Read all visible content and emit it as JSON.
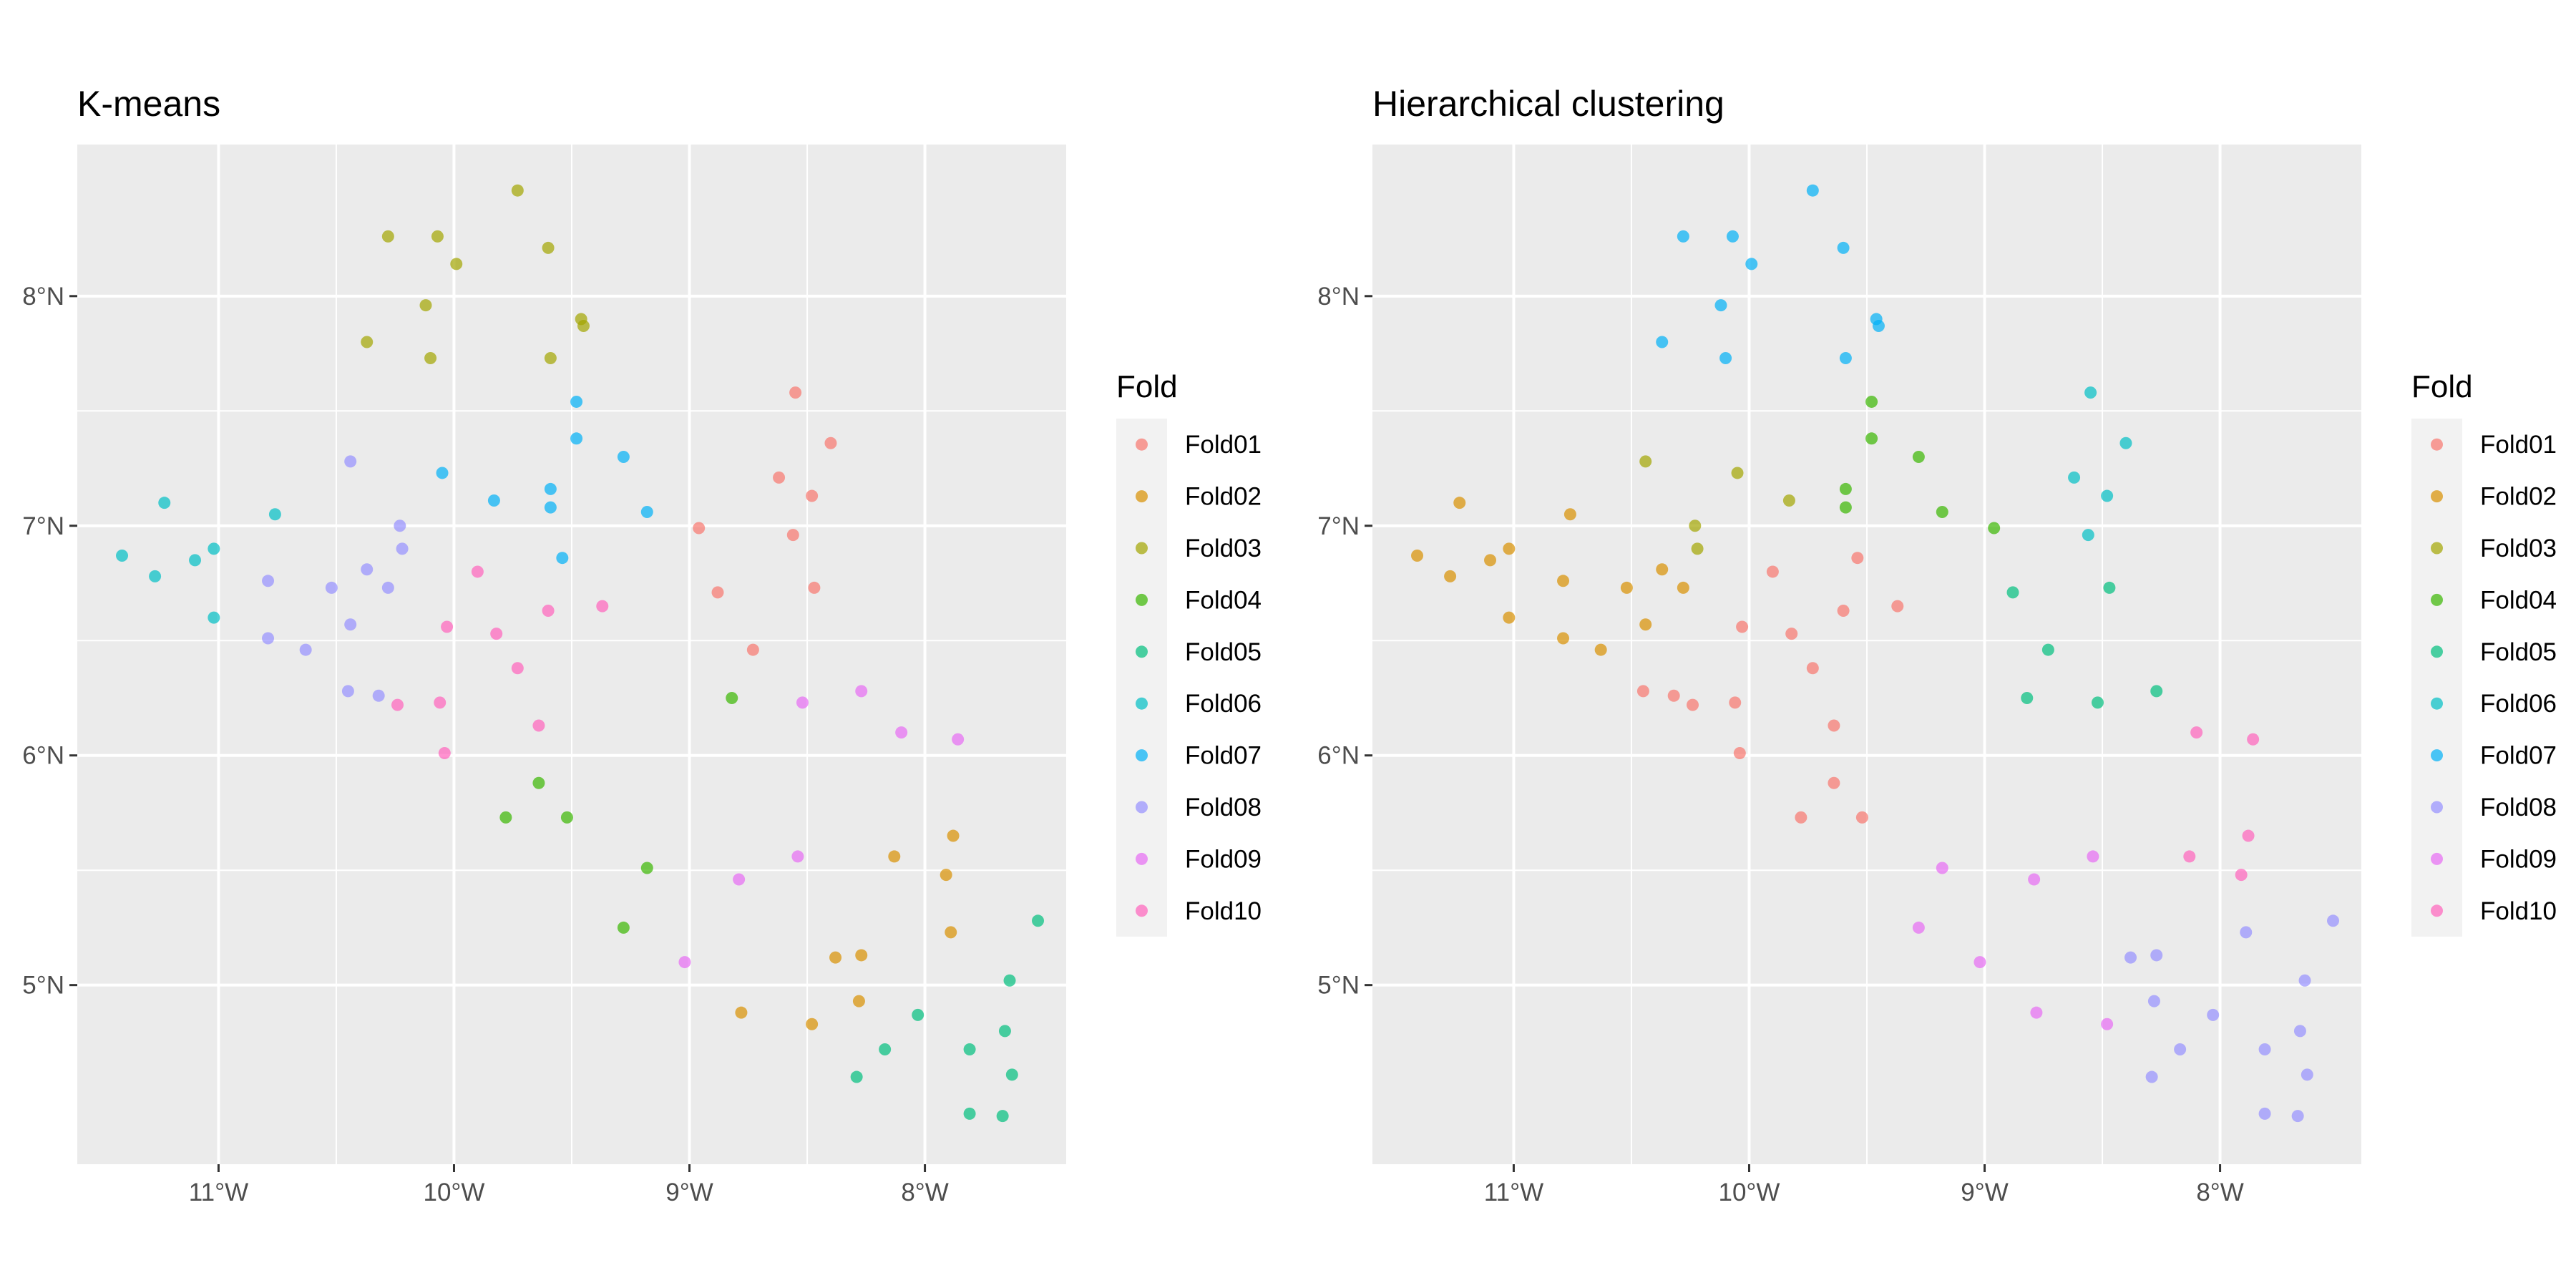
{
  "colors": {
    "panel_bg": "#ebebeb",
    "grid": "#ffffff",
    "legend_key_bg": "#f2f2f2",
    "tick_text": "#4d4d4d"
  },
  "legend": {
    "title": "Fold",
    "items": [
      {
        "label": "Fold01",
        "color": "#F8766D"
      },
      {
        "label": "Fold02",
        "color": "#D89000"
      },
      {
        "label": "Fold03",
        "color": "#A3A500"
      },
      {
        "label": "Fold04",
        "color": "#39B600"
      },
      {
        "label": "Fold05",
        "color": "#00BF7D"
      },
      {
        "label": "Fold06",
        "color": "#00BFC4"
      },
      {
        "label": "Fold07",
        "color": "#00B0F6"
      },
      {
        "label": "Fold08",
        "color": "#9590FF"
      },
      {
        "label": "Fold09",
        "color": "#E76BF3"
      },
      {
        "label": "Fold10",
        "color": "#FF62BC"
      }
    ]
  },
  "chart_data": [
    {
      "type": "scatter",
      "title": "K-means",
      "xlabel": "",
      "ylabel": "",
      "xlim": [
        -11.6,
        -7.4
      ],
      "ylim": [
        4.22,
        8.66
      ],
      "x_ticks": [
        {
          "value": -11,
          "label": "11°W"
        },
        {
          "value": -10,
          "label": "10°W"
        },
        {
          "value": -9,
          "label": "9°W"
        },
        {
          "value": -8,
          "label": "8°W"
        }
      ],
      "y_ticks": [
        {
          "value": 5,
          "label": "5°N"
        },
        {
          "value": 6,
          "label": "6°N"
        },
        {
          "value": 7,
          "label": "7°N"
        },
        {
          "value": 8,
          "label": "8°N"
        }
      ],
      "grid": true,
      "point_alpha": 0.7,
      "series": [
        {
          "name": "Fold01",
          "points": [
            [
              -8.55,
              7.58
            ],
            [
              -8.4,
              7.36
            ],
            [
              -8.62,
              7.21
            ],
            [
              -8.48,
              7.13
            ],
            [
              -8.96,
              6.99
            ],
            [
              -8.56,
              6.96
            ],
            [
              -8.88,
              6.71
            ],
            [
              -8.47,
              6.73
            ],
            [
              -8.73,
              6.46
            ]
          ]
        },
        {
          "name": "Fold02",
          "points": [
            [
              -8.13,
              5.56
            ],
            [
              -7.88,
              5.65
            ],
            [
              -7.91,
              5.48
            ],
            [
              -7.89,
              5.23
            ],
            [
              -8.27,
              5.13
            ],
            [
              -8.38,
              5.12
            ],
            [
              -8.78,
              4.88
            ],
            [
              -8.28,
              4.93
            ],
            [
              -8.48,
              4.83
            ]
          ]
        },
        {
          "name": "Fold03",
          "points": [
            [
              -10.28,
              8.26
            ],
            [
              -10.07,
              8.26
            ],
            [
              -9.73,
              8.46
            ],
            [
              -9.6,
              8.21
            ],
            [
              -9.99,
              8.14
            ],
            [
              -10.12,
              7.96
            ],
            [
              -9.46,
              7.9
            ],
            [
              -9.45,
              7.87
            ],
            [
              -10.37,
              7.8
            ],
            [
              -10.1,
              7.73
            ],
            [
              -9.59,
              7.73
            ]
          ]
        },
        {
          "name": "Fold04",
          "points": [
            [
              -8.82,
              6.25
            ],
            [
              -9.64,
              5.88
            ],
            [
              -9.52,
              5.73
            ],
            [
              -9.78,
              5.73
            ],
            [
              -9.18,
              5.51
            ],
            [
              -9.28,
              5.25
            ]
          ]
        },
        {
          "name": "Fold05",
          "points": [
            [
              -7.52,
              5.28
            ],
            [
              -7.64,
              5.02
            ],
            [
              -7.66,
              4.8
            ],
            [
              -8.03,
              4.87
            ],
            [
              -8.17,
              4.72
            ],
            [
              -7.81,
              4.72
            ],
            [
              -7.63,
              4.61
            ],
            [
              -8.29,
              4.6
            ],
            [
              -7.81,
              4.44
            ],
            [
              -7.67,
              4.43
            ]
          ]
        },
        {
          "name": "Fold06",
          "points": [
            [
              -11.23,
              7.1
            ],
            [
              -10.76,
              7.05
            ],
            [
              -11.02,
              6.9
            ],
            [
              -11.41,
              6.87
            ],
            [
              -11.1,
              6.85
            ],
            [
              -11.27,
              6.78
            ],
            [
              -11.02,
              6.6
            ]
          ]
        },
        {
          "name": "Fold07",
          "points": [
            [
              -9.48,
              7.54
            ],
            [
              -9.48,
              7.38
            ],
            [
              -9.28,
              7.3
            ],
            [
              -10.05,
              7.23
            ],
            [
              -9.59,
              7.16
            ],
            [
              -9.83,
              7.11
            ],
            [
              -9.59,
              7.08
            ],
            [
              -9.18,
              7.06
            ],
            [
              -9.54,
              6.86
            ]
          ]
        },
        {
          "name": "Fold08",
          "points": [
            [
              -10.44,
              7.28
            ],
            [
              -10.23,
              7.0
            ],
            [
              -10.22,
              6.9
            ],
            [
              -10.37,
              6.81
            ],
            [
              -10.79,
              6.76
            ],
            [
              -10.52,
              6.73
            ],
            [
              -10.28,
              6.73
            ],
            [
              -10.44,
              6.57
            ],
            [
              -10.79,
              6.51
            ],
            [
              -10.63,
              6.46
            ],
            [
              -10.45,
              6.28
            ],
            [
              -10.32,
              6.26
            ]
          ]
        },
        {
          "name": "Fold09",
          "points": [
            [
              -8.27,
              6.28
            ],
            [
              -8.52,
              6.23
            ],
            [
              -8.1,
              6.1
            ],
            [
              -7.86,
              6.07
            ],
            [
              -8.54,
              5.56
            ],
            [
              -8.79,
              5.46
            ],
            [
              -9.02,
              5.1
            ]
          ]
        },
        {
          "name": "Fold10",
          "points": [
            [
              -9.9,
              6.8
            ],
            [
              -9.37,
              6.65
            ],
            [
              -9.6,
              6.63
            ],
            [
              -10.03,
              6.56
            ],
            [
              -9.82,
              6.53
            ],
            [
              -9.73,
              6.38
            ],
            [
              -10.06,
              6.23
            ],
            [
              -10.24,
              6.22
            ],
            [
              -9.64,
              6.13
            ],
            [
              -10.04,
              6.01
            ]
          ]
        }
      ]
    },
    {
      "type": "scatter",
      "title": "Hierarchical clustering",
      "xlabel": "",
      "ylabel": "",
      "xlim": [
        -11.6,
        -7.4
      ],
      "ylim": [
        4.22,
        8.66
      ],
      "x_ticks": [
        {
          "value": -11,
          "label": "11°W"
        },
        {
          "value": -10,
          "label": "10°W"
        },
        {
          "value": -9,
          "label": "9°W"
        },
        {
          "value": -8,
          "label": "8°W"
        }
      ],
      "y_ticks": [
        {
          "value": 5,
          "label": "5°N"
        },
        {
          "value": 6,
          "label": "6°N"
        },
        {
          "value": 7,
          "label": "7°N"
        },
        {
          "value": 8,
          "label": "8°N"
        }
      ],
      "grid": true,
      "point_alpha": 0.7,
      "series": [
        {
          "name": "Fold01",
          "points": [
            [
              -9.54,
              6.86
            ],
            [
              -9.9,
              6.8
            ],
            [
              -9.37,
              6.65
            ],
            [
              -9.6,
              6.63
            ],
            [
              -10.03,
              6.56
            ],
            [
              -9.82,
              6.53
            ],
            [
              -9.73,
              6.38
            ],
            [
              -10.45,
              6.28
            ],
            [
              -10.32,
              6.26
            ],
            [
              -10.06,
              6.23
            ],
            [
              -10.24,
              6.22
            ],
            [
              -9.64,
              6.13
            ],
            [
              -10.04,
              6.01
            ],
            [
              -9.64,
              5.88
            ],
            [
              -9.52,
              5.73
            ],
            [
              -9.78,
              5.73
            ]
          ]
        },
        {
          "name": "Fold02",
          "points": [
            [
              -11.23,
              7.1
            ],
            [
              -10.76,
              7.05
            ],
            [
              -11.02,
              6.9
            ],
            [
              -11.41,
              6.87
            ],
            [
              -11.1,
              6.85
            ],
            [
              -10.37,
              6.81
            ],
            [
              -11.27,
              6.78
            ],
            [
              -10.79,
              6.76
            ],
            [
              -10.52,
              6.73
            ],
            [
              -10.28,
              6.73
            ],
            [
              -11.02,
              6.6
            ],
            [
              -10.44,
              6.57
            ],
            [
              -10.79,
              6.51
            ],
            [
              -10.63,
              6.46
            ]
          ]
        },
        {
          "name": "Fold03",
          "points": [
            [
              -10.44,
              7.28
            ],
            [
              -10.05,
              7.23
            ],
            [
              -9.83,
              7.11
            ],
            [
              -10.23,
              7.0
            ],
            [
              -10.22,
              6.9
            ]
          ]
        },
        {
          "name": "Fold04",
          "points": [
            [
              -9.48,
              7.54
            ],
            [
              -9.48,
              7.38
            ],
            [
              -9.28,
              7.3
            ],
            [
              -9.59,
              7.16
            ],
            [
              -9.59,
              7.08
            ],
            [
              -9.18,
              7.06
            ],
            [
              -8.96,
              6.99
            ]
          ]
        },
        {
          "name": "Fold05",
          "points": [
            [
              -8.47,
              6.73
            ],
            [
              -8.88,
              6.71
            ],
            [
              -8.73,
              6.46
            ],
            [
              -8.27,
              6.28
            ],
            [
              -8.82,
              6.25
            ],
            [
              -8.52,
              6.23
            ]
          ]
        },
        {
          "name": "Fold06",
          "points": [
            [
              -8.55,
              7.58
            ],
            [
              -8.4,
              7.36
            ],
            [
              -8.62,
              7.21
            ],
            [
              -8.48,
              7.13
            ],
            [
              -8.56,
              6.96
            ]
          ]
        },
        {
          "name": "Fold07",
          "points": [
            [
              -9.73,
              8.46
            ],
            [
              -10.28,
              8.26
            ],
            [
              -10.07,
              8.26
            ],
            [
              -9.6,
              8.21
            ],
            [
              -9.99,
              8.14
            ],
            [
              -10.12,
              7.96
            ],
            [
              -9.46,
              7.9
            ],
            [
              -9.45,
              7.87
            ],
            [
              -10.37,
              7.8
            ],
            [
              -10.1,
              7.73
            ],
            [
              -9.59,
              7.73
            ]
          ]
        },
        {
          "name": "Fold08",
          "points": [
            [
              -7.52,
              5.28
            ],
            [
              -7.89,
              5.23
            ],
            [
              -8.27,
              5.13
            ],
            [
              -8.38,
              5.12
            ],
            [
              -7.64,
              5.02
            ],
            [
              -8.28,
              4.93
            ],
            [
              -8.03,
              4.87
            ],
            [
              -7.66,
              4.8
            ],
            [
              -8.17,
              4.72
            ],
            [
              -7.81,
              4.72
            ],
            [
              -7.63,
              4.61
            ],
            [
              -8.29,
              4.6
            ],
            [
              -7.81,
              4.44
            ],
            [
              -7.67,
              4.43
            ]
          ]
        },
        {
          "name": "Fold09",
          "points": [
            [
              -9.18,
              5.51
            ],
            [
              -8.54,
              5.56
            ],
            [
              -8.79,
              5.46
            ],
            [
              -9.28,
              5.25
            ],
            [
              -9.02,
              5.1
            ],
            [
              -8.78,
              4.88
            ],
            [
              -8.48,
              4.83
            ]
          ]
        },
        {
          "name": "Fold10",
          "points": [
            [
              -8.1,
              6.1
            ],
            [
              -7.86,
              6.07
            ],
            [
              -7.88,
              5.65
            ],
            [
              -8.13,
              5.56
            ],
            [
              -7.91,
              5.48
            ]
          ]
        }
      ]
    }
  ]
}
